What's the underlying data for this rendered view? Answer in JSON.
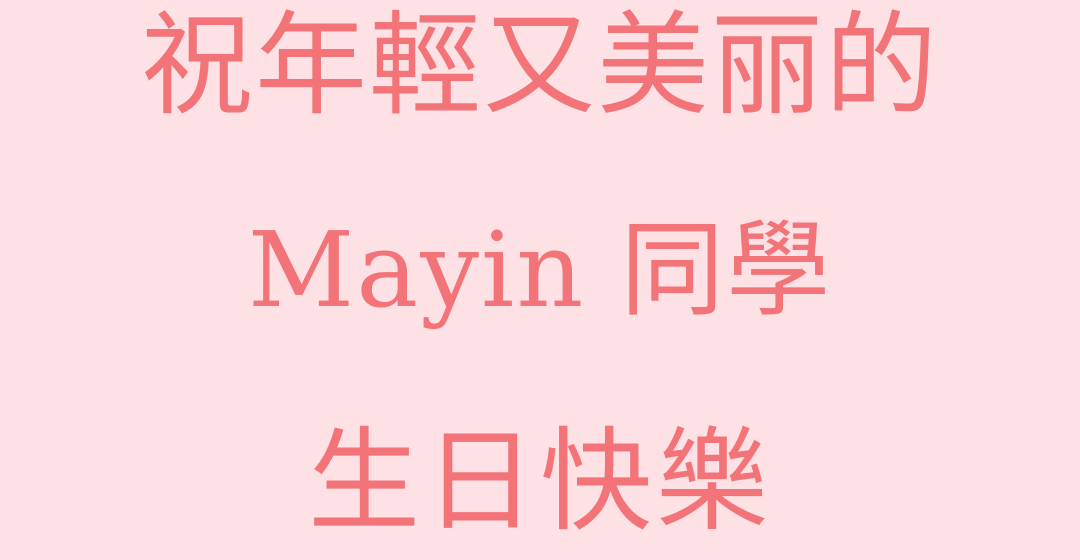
{
  "colors": {
    "background": "#fde1e4",
    "text": "#f27378"
  },
  "card": {
    "line_1": "祝年輕又美丽的",
    "line_2": "Mayin 同學",
    "line_3": "生日快樂"
  }
}
